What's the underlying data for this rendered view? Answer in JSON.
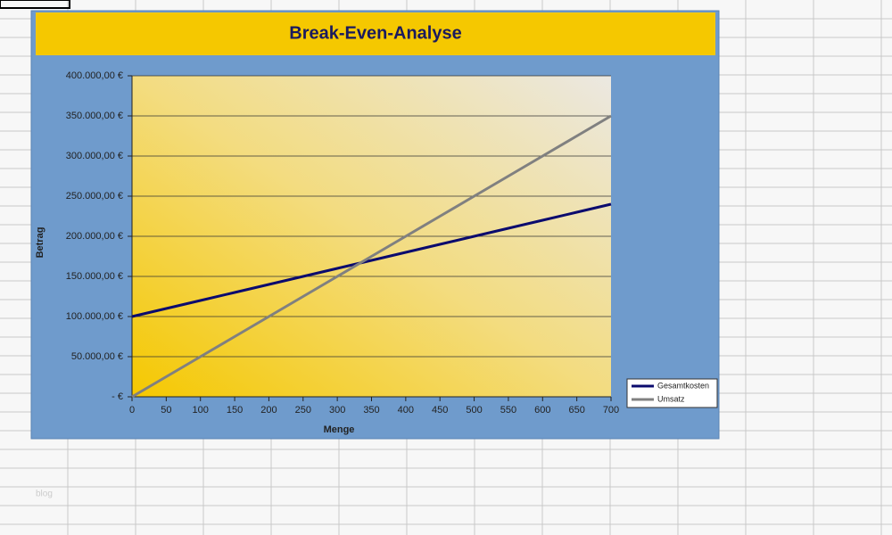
{
  "watermark": "blog",
  "chart_data": {
    "type": "line",
    "title": "Break-Even-Analyse",
    "x_label": "Menge",
    "y_label": "Betrag",
    "x": [
      0,
      50,
      100,
      150,
      200,
      250,
      300,
      350,
      400,
      450,
      500,
      550,
      600,
      650,
      700
    ],
    "series": [
      {
        "name": "Gesamtkosten",
        "color": "#0b0b6e",
        "values": [
          100000,
          110000,
          120000,
          130000,
          140000,
          150000,
          160000,
          170000,
          180000,
          190000,
          200000,
          210000,
          220000,
          230000,
          240000
        ]
      },
      {
        "name": "Umsatz",
        "color": "#808080",
        "values": [
          0,
          25000,
          50000,
          75000,
          100000,
          125000,
          150000,
          175000,
          200000,
          225000,
          250000,
          275000,
          300000,
          325000,
          350000
        ]
      }
    ],
    "xlim": [
      0,
      700
    ],
    "xticks": [
      0,
      50,
      100,
      150,
      200,
      250,
      300,
      350,
      400,
      450,
      500,
      550,
      600,
      650,
      700
    ],
    "ylim": [
      0,
      400000
    ],
    "yticks": [
      {
        "value": 0,
        "label": "-   €"
      },
      {
        "value": 50000,
        "label": "50.000,00 €"
      },
      {
        "value": 100000,
        "label": "100.000,00 €"
      },
      {
        "value": 150000,
        "label": "150.000,00 €"
      },
      {
        "value": 200000,
        "label": "200.000,00 €"
      },
      {
        "value": 250000,
        "label": "250.000,00 €"
      },
      {
        "value": 300000,
        "label": "300.000,00 €"
      },
      {
        "value": 350000,
        "label": "350.000,00 €"
      },
      {
        "value": 400000,
        "label": "400.000,00 €"
      }
    ],
    "grid": true,
    "legend": "bottom-right"
  }
}
